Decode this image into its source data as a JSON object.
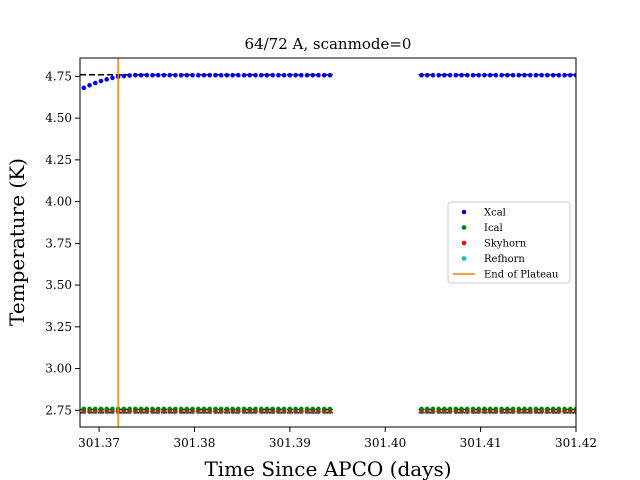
{
  "chart_data": {
    "type": "scatter",
    "title": "64/72 A, scanmode=0",
    "xlabel": "Time Since APCO (days)",
    "ylabel": "Temperature (K)",
    "xlim": [
      301.368,
      301.42
    ],
    "ylim": [
      2.65,
      4.86
    ],
    "xticks": [
      "301.37",
      "301.38",
      "301.39",
      "301.40",
      "301.41",
      "301.42"
    ],
    "yticks": [
      "2.75",
      "3.00",
      "3.25",
      "3.50",
      "3.75",
      "4.00",
      "4.25",
      "4.50",
      "4.75"
    ],
    "grid": false,
    "legend_position": "center-right",
    "gap": [
      301.3945,
      301.4035
    ],
    "series": [
      {
        "name": "Xcal",
        "color": "#0000ff",
        "sample_step": 0.0006,
        "y_start": 4.67,
        "y_plateau": 4.757,
        "settle_days": 0.006
      },
      {
        "name": "Ical",
        "color": "#008000",
        "sample_step": 0.0006,
        "y_constant": 2.758
      },
      {
        "name": "Skyhorn",
        "color": "#ff0000",
        "sample_step": 0.0006,
        "y_constant": 2.745
      },
      {
        "name": "Refhorn",
        "color": "#00bfbf",
        "sample_step": 0.0006,
        "y_constant": 2.74
      }
    ],
    "reference_lines": [
      {
        "y": 4.76,
        "style": "dashed",
        "color": "#000000"
      },
      {
        "y": 2.755,
        "style": "dashed",
        "color": "#000000"
      },
      {
        "y": 2.735,
        "style": "dashed",
        "color": "#000000"
      }
    ],
    "vertical_line": {
      "name": "End of Plateau",
      "x": 301.372,
      "color": "#ff7f0e"
    }
  }
}
